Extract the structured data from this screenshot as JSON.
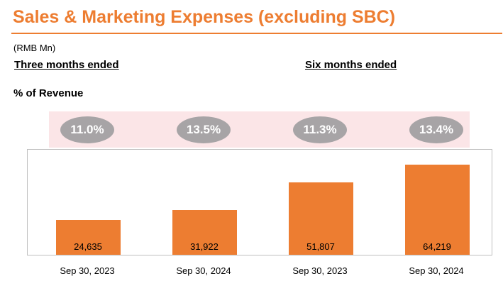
{
  "title": "Sales & Marketing Expenses (excluding SBC)",
  "unit": "(RMB Mn)",
  "period_labels": [
    "Three months ended",
    "Six months ended"
  ],
  "pct_heading": "% of Revenue",
  "colors": {
    "accent": "#ED7D31",
    "band": "#FBE5E7",
    "oval": "#A7A4A6"
  },
  "chart_data": {
    "type": "bar",
    "categories": [
      "Sep 30, 2023",
      "Sep 30, 2024",
      "Sep 30, 2023",
      "Sep 30, 2024"
    ],
    "values": [
      24635,
      31922,
      51807,
      64219
    ],
    "value_labels": [
      "24,635",
      "31,922",
      "51,807",
      "64,219"
    ],
    "pct_of_revenue": [
      "11.0%",
      "13.5%",
      "11.3%",
      "13.4%"
    ],
    "ylim": [
      0,
      75000
    ]
  }
}
